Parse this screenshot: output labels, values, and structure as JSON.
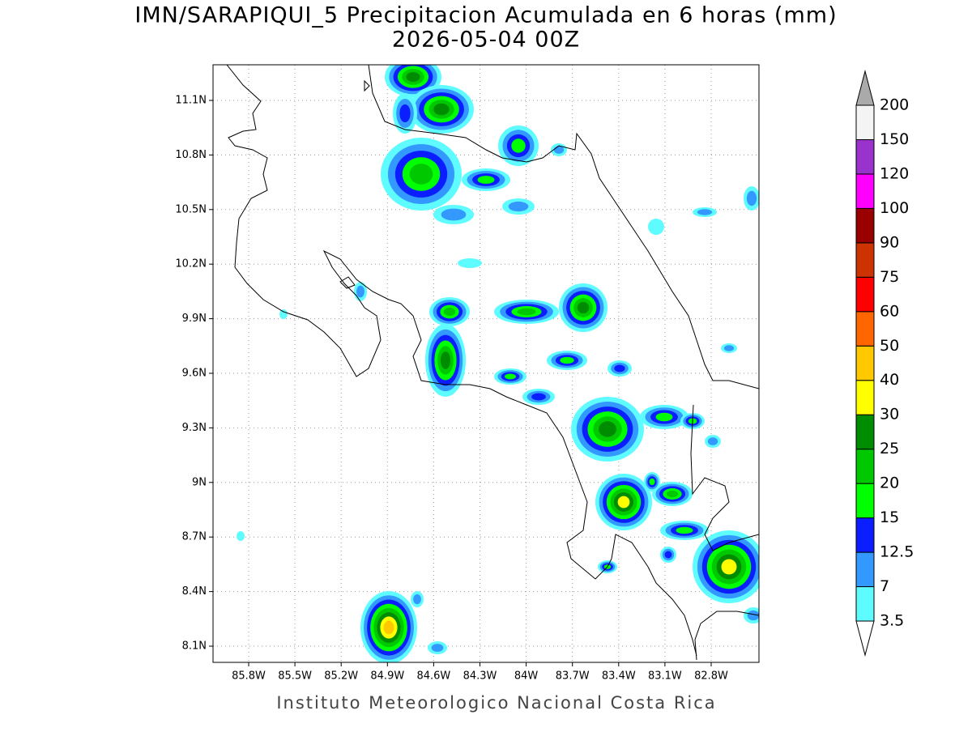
{
  "title": "IMN/SARAPIQUI_5 Precipitacion Acumulada en 6 horas (mm)",
  "subtitle": "2026-05-04 00Z",
  "lon_labels": [
    "85.8W",
    "85.5W",
    "85.2W",
    "84.9W",
    "84.6W",
    "84.3W",
    "84W",
    "83.7W",
    "83.4W",
    "83.1W",
    "82.8W"
  ],
  "lat_labels": [
    "11.1N",
    "10.8N",
    "10.5N",
    "10.2N",
    "9.9N",
    "9.6N",
    "9.3N",
    "9N",
    "8.7N",
    "8.4N",
    "8.1N"
  ],
  "colorbar": {
    "levels": [
      "3.5",
      "7",
      "12.5",
      "15",
      "20",
      "25",
      "30",
      "40",
      "50",
      "60",
      "75",
      "90",
      "100",
      "120",
      "150",
      "200"
    ],
    "colors": [
      "#5ffcff",
      "#3399ff",
      "#0a1eff",
      "#00ff00",
      "#00c800",
      "#008c00",
      "#ffff00",
      "#ffc800",
      "#ff6600",
      "#ff0000",
      "#cc3300",
      "#990000",
      "#ff00ff",
      "#9933cc",
      "#f4f4f4"
    ],
    "over_color": "#aaaaaa",
    "under_color": "#ffffff"
  },
  "footer": "Instituto Meteorologico Nacional Costa Rica"
}
